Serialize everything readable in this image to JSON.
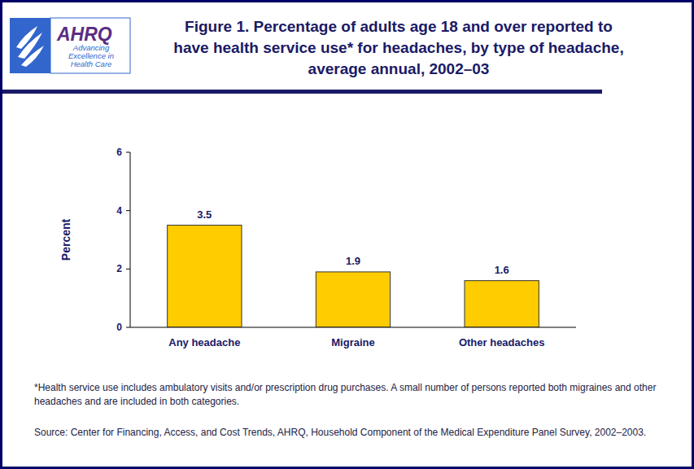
{
  "chart_data": {
    "type": "bar",
    "title": "Figure 1. Percentage of adults age 18 and over reported to have health service use* for headaches, by type of headache, average annual, 2002–03",
    "y_label": "Percent",
    "categories": [
      "Any headache",
      "Migraine",
      "Other headaches"
    ],
    "values": [
      3.5,
      1.9,
      1.6
    ],
    "color": "#ffcc00",
    "ylim": [
      0,
      6
    ],
    "yticks": [
      0,
      2,
      4,
      6
    ],
    "grid": false,
    "data_labels": true,
    "footnote": "*Health service use includes ambulatory visits and/or prescription drug purchases. A small number of persons reported both migraines and other headaches and are included in both categories.",
    "source": "Source: Center for Financing, Access, and Cost Trends, AHRQ, Household Component of the Medical Expenditure Panel Survey, 2002–2003."
  },
  "logo": {
    "name": "AHRQ",
    "tagline": [
      "Advancing",
      "Excellence in",
      "Health Care"
    ]
  }
}
